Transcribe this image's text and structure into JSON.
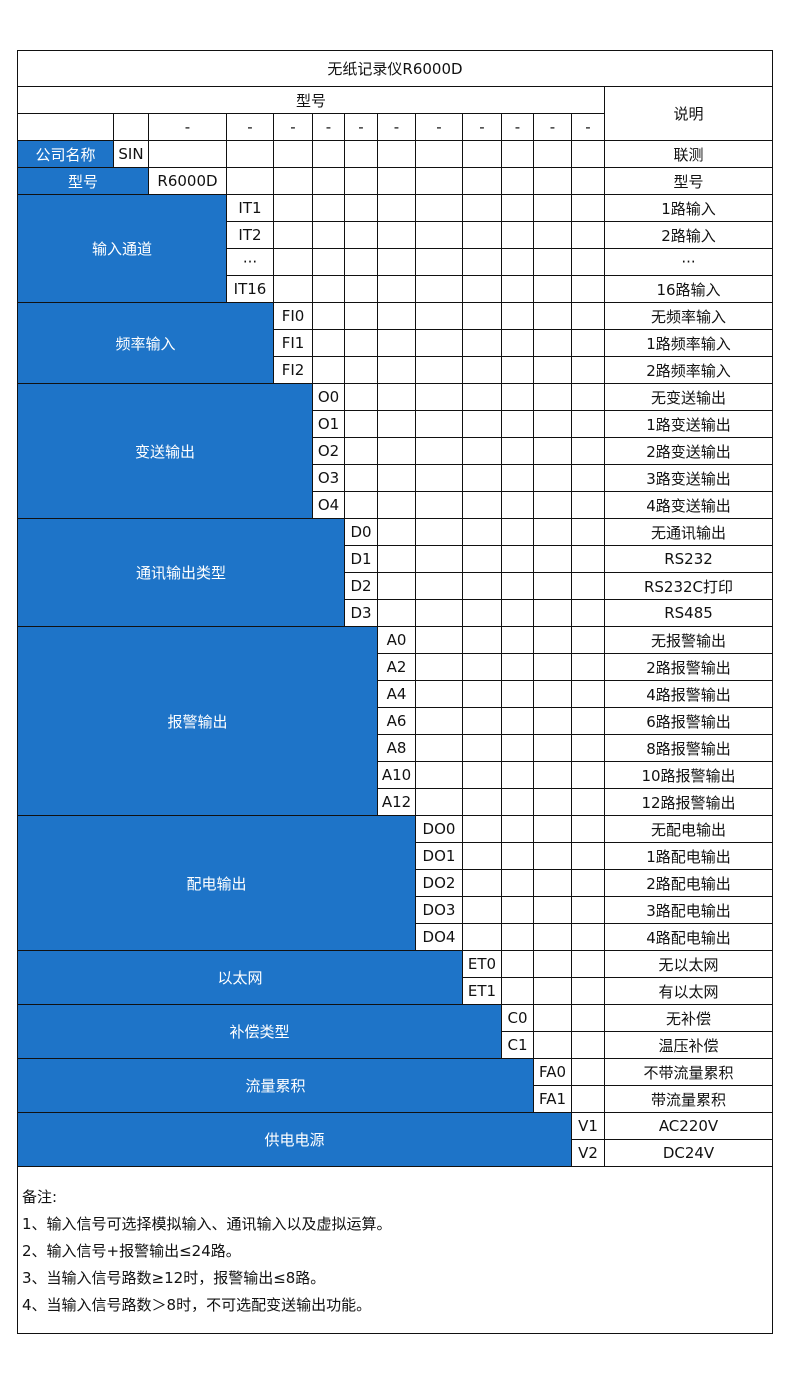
{
  "title": "无纸记录仪R6000D",
  "header": {
    "model_label": "型号",
    "desc_label": "说明",
    "dash": "-"
  },
  "company_row": {
    "label": "公司名称",
    "code": "SIN",
    "desc": "联测"
  },
  "model_row": {
    "label": "型号",
    "code": "R6000D",
    "desc": "型号"
  },
  "groups": [
    {
      "label": "输入通道",
      "codes": [
        "IT1",
        "IT2",
        "···",
        "IT16"
      ],
      "descs": [
        "1路输入",
        "2路输入",
        "···",
        "16路输入"
      ]
    },
    {
      "label": "频率输入",
      "codes": [
        "FI0",
        "FI1",
        "FI2"
      ],
      "descs": [
        "无频率输入",
        "1路频率输入",
        "2路频率输入"
      ]
    },
    {
      "label": "变送输出",
      "codes": [
        "O0",
        "O1",
        "O2",
        "O3",
        "O4"
      ],
      "descs": [
        "无变送输出",
        "1路变送输出",
        "2路变送输出",
        "3路变送输出",
        "4路变送输出"
      ]
    },
    {
      "label": "通讯输出类型",
      "codes": [
        "D0",
        "D1",
        "D2",
        "D3"
      ],
      "descs": [
        "无通讯输出",
        "RS232",
        "RS232C打印",
        "RS485"
      ]
    },
    {
      "label": "报警输出",
      "codes": [
        "A0",
        "A2",
        "A4",
        "A6",
        "A8",
        "A10",
        "A12"
      ],
      "descs": [
        "无报警输出",
        "2路报警输出",
        "4路报警输出",
        "6路报警输出",
        "8路报警输出",
        "10路报警输出",
        "12路报警输出"
      ]
    },
    {
      "label": "配电输出",
      "codes": [
        "DO0",
        "DO1",
        "DO2",
        "DO3",
        "DO4"
      ],
      "descs": [
        "无配电输出",
        "1路配电输出",
        "2路配电输出",
        "3路配电输出",
        "4路配电输出"
      ]
    },
    {
      "label": "以太网",
      "codes": [
        "ET0",
        "ET1"
      ],
      "descs": [
        "无以太网",
        "有以太网"
      ]
    },
    {
      "label": "补偿类型",
      "codes": [
        "C0",
        "C1"
      ],
      "descs": [
        "无补偿",
        "温压补偿"
      ]
    },
    {
      "label": "流量累积",
      "codes": [
        "FA0",
        "FA1"
      ],
      "descs": [
        "不带流量累积",
        "带流量累积"
      ]
    },
    {
      "label": "供电电源",
      "codes": [
        "V1",
        "V2"
      ],
      "descs": [
        "AC220V",
        "DC24V"
      ]
    }
  ],
  "notes": {
    "title": "备注:",
    "items": [
      "1、输入信号可选择模拟输入、通讯输入以及虚拟运算。",
      "2、输入信号+报警输出≤24路。",
      "3、当输入信号路数≥12时，报警输出≤8路。",
      "4、当输入信号路数＞8时，不可选配变送输出功能。"
    ]
  },
  "colors": {
    "header_blue": "#1e74c8"
  }
}
